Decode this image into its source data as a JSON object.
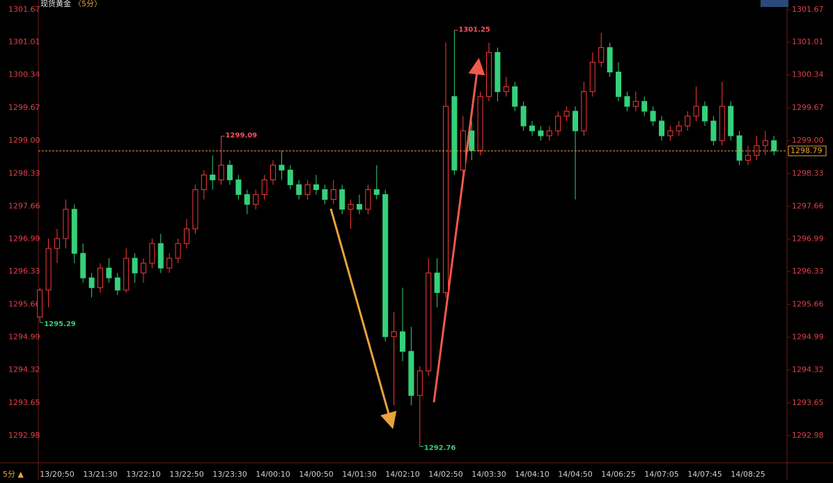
{
  "chart_data": {
    "type": "candlestick",
    "title": "现货黄金",
    "subtitle": "〈5分〉",
    "period_label": "5分 ▲",
    "categories": [
      null,
      null,
      "13/20:50",
      null,
      null,
      null,
      null,
      "13/21:30",
      null,
      null,
      null,
      null,
      "13/22:10",
      null,
      null,
      null,
      null,
      "13/22:50",
      null,
      null,
      null,
      null,
      "13/23:30",
      null,
      null,
      null,
      null,
      "14/00:10",
      null,
      null,
      null,
      null,
      "14/00:50",
      null,
      null,
      null,
      null,
      "14/01:30",
      null,
      null,
      null,
      null,
      "14/02:10",
      null,
      null,
      null,
      null,
      "14/02:50",
      null,
      null,
      null,
      null,
      "14/03:30",
      null,
      null,
      null,
      null,
      "14/04:10",
      null,
      null,
      null,
      null,
      "14/04:50",
      null,
      null,
      null,
      null,
      "14/06:25",
      null,
      null,
      null,
      null,
      "14/07:05",
      null,
      null,
      null,
      null,
      "14/07:45",
      null,
      null,
      null,
      null,
      "14/08:25",
      null,
      null,
      null
    ],
    "open": [
      1295.4,
      1295.95,
      1296.8,
      1297.0,
      1297.6,
      1296.7,
      1296.2,
      1296.0,
      1296.4,
      1296.2,
      1295.95,
      1296.6,
      1296.3,
      1296.5,
      1296.9,
      1296.4,
      1296.6,
      1296.9,
      1297.2,
      1298.0,
      1298.3,
      1298.2,
      1298.5,
      1298.2,
      1297.9,
      1297.7,
      1297.9,
      1298.2,
      1298.5,
      1298.4,
      1298.1,
      1297.9,
      1298.1,
      1298.0,
      1297.8,
      1298.0,
      1297.6,
      1297.7,
      1297.6,
      1298.0,
      1297.9,
      1295.0,
      1295.1,
      1294.7,
      1293.8,
      1294.3,
      1296.3,
      1295.9,
      1299.9,
      1298.4,
      1299.2,
      1298.8,
      1299.9,
      1300.8,
      1300.0,
      1300.1,
      1299.7,
      1299.3,
      1299.2,
      1299.1,
      1299.2,
      1299.5,
      1299.6,
      1299.2,
      1300.0,
      1300.6,
      1300.9,
      1300.4,
      1299.9,
      1299.7,
      1299.8,
      1299.6,
      1299.4,
      1299.1,
      1299.2,
      1299.3,
      1299.5,
      1299.7,
      1299.4,
      1299.0,
      1299.7,
      1299.1,
      1298.6,
      1298.7,
      1298.9,
      1299.0
    ],
    "high": [
      1296.0,
      1297.0,
      1297.2,
      1297.8,
      1297.7,
      1296.9,
      1296.3,
      1296.5,
      1296.6,
      1296.3,
      1296.8,
      1296.7,
      1296.6,
      1297.0,
      1297.1,
      1296.7,
      1297.0,
      1297.4,
      1298.1,
      1298.4,
      1298.7,
      1299.09,
      1298.6,
      1298.3,
      1298.0,
      1298.0,
      1298.3,
      1298.6,
      1298.8,
      1298.5,
      1298.2,
      1298.2,
      1298.3,
      1298.1,
      1298.2,
      1298.1,
      1297.8,
      1297.9,
      1298.1,
      1298.5,
      1298.0,
      1295.5,
      1296.0,
      1295.2,
      1294.4,
      1296.6,
      1296.6,
      1301.0,
      1301.25,
      1299.5,
      1299.4,
      1300.0,
      1301.0,
      1300.9,
      1300.3,
      1300.2,
      1299.8,
      1299.4,
      1299.3,
      1299.3,
      1299.6,
      1299.7,
      1299.7,
      1300.2,
      1300.8,
      1301.2,
      1301.0,
      1300.6,
      1300.0,
      1300.0,
      1299.9,
      1299.7,
      1299.5,
      1299.3,
      1299.4,
      1299.6,
      1300.1,
      1299.8,
      1299.5,
      1300.2,
      1299.8,
      1299.2,
      1298.9,
      1299.1,
      1299.2,
      1299.1
    ],
    "low": [
      1295.29,
      1295.6,
      1296.5,
      1296.8,
      1296.5,
      1296.1,
      1295.8,
      1295.9,
      1296.1,
      1295.85,
      1295.9,
      1296.1,
      1296.1,
      1296.4,
      1296.3,
      1296.3,
      1296.5,
      1296.8,
      1297.1,
      1297.8,
      1298.0,
      1298.1,
      1298.1,
      1297.8,
      1297.5,
      1297.6,
      1297.8,
      1298.1,
      1298.2,
      1298.0,
      1297.8,
      1297.8,
      1297.9,
      1297.7,
      1297.7,
      1297.5,
      1297.2,
      1297.5,
      1297.5,
      1297.8,
      1294.9,
      1293.6,
      1294.5,
      1293.6,
      1292.76,
      1294.2,
      1295.6,
      1295.8,
      1298.3,
      1298.3,
      1298.6,
      1298.7,
      1299.8,
      1299.8,
      1299.9,
      1299.6,
      1299.2,
      1299.1,
      1299.0,
      1299.0,
      1299.1,
      1299.4,
      1297.8,
      1299.1,
      1299.9,
      1300.5,
      1300.3,
      1299.8,
      1299.6,
      1299.6,
      1299.5,
      1299.3,
      1299.0,
      1299.0,
      1299.1,
      1299.2,
      1299.4,
      1299.3,
      1298.9,
      1298.9,
      1299.0,
      1298.5,
      1298.5,
      1298.6,
      1298.7,
      1298.7
    ],
    "close": [
      1295.95,
      1296.8,
      1297.0,
      1297.6,
      1296.7,
      1296.2,
      1296.0,
      1296.4,
      1296.2,
      1295.95,
      1296.6,
      1296.3,
      1296.5,
      1296.9,
      1296.4,
      1296.6,
      1296.9,
      1297.2,
      1298.0,
      1298.3,
      1298.2,
      1298.5,
      1298.2,
      1297.9,
      1297.7,
      1297.9,
      1298.2,
      1298.5,
      1298.4,
      1298.1,
      1297.9,
      1298.1,
      1298.0,
      1297.8,
      1298.0,
      1297.6,
      1297.7,
      1297.6,
      1298.0,
      1297.9,
      1295.0,
      1295.1,
      1294.7,
      1293.8,
      1294.3,
      1296.3,
      1295.9,
      1299.7,
      1298.4,
      1299.2,
      1298.8,
      1299.9,
      1300.8,
      1300.0,
      1300.1,
      1299.7,
      1299.3,
      1299.2,
      1299.1,
      1299.2,
      1299.5,
      1299.6,
      1299.2,
      1300.0,
      1300.6,
      1300.9,
      1300.4,
      1299.9,
      1299.7,
      1299.8,
      1299.6,
      1299.4,
      1299.1,
      1299.2,
      1299.3,
      1299.5,
      1299.7,
      1299.4,
      1299.0,
      1299.7,
      1299.1,
      1298.6,
      1298.7,
      1298.9,
      1299.0,
      1298.79
    ],
    "up_color": "#ff3a3a",
    "down_color": "#35d07a",
    "ylim": [
      1292.44,
      1301.87
    ],
    "yticks": [
      1301.67,
      1301.01,
      1300.34,
      1299.67,
      {
        "value": 1299,
        "label": "1299.00"
      },
      1298.33,
      1297.66,
      1296.99,
      1296.33,
      1295.66,
      1294.99,
      1294.32,
      1293.65,
      1292.98
    ],
    "last_price": 1298.79,
    "last_price_color": "#e8a33c",
    "extremes": [
      {
        "value": 1299.09,
        "color": "#ff4f5e"
      },
      {
        "value": 1301.25,
        "color": "#ff4f5e"
      },
      {
        "value": 1295.29,
        "color": "#35d07a"
      },
      {
        "value": 1292.76,
        "color": "#35d07a"
      }
    ]
  }
}
